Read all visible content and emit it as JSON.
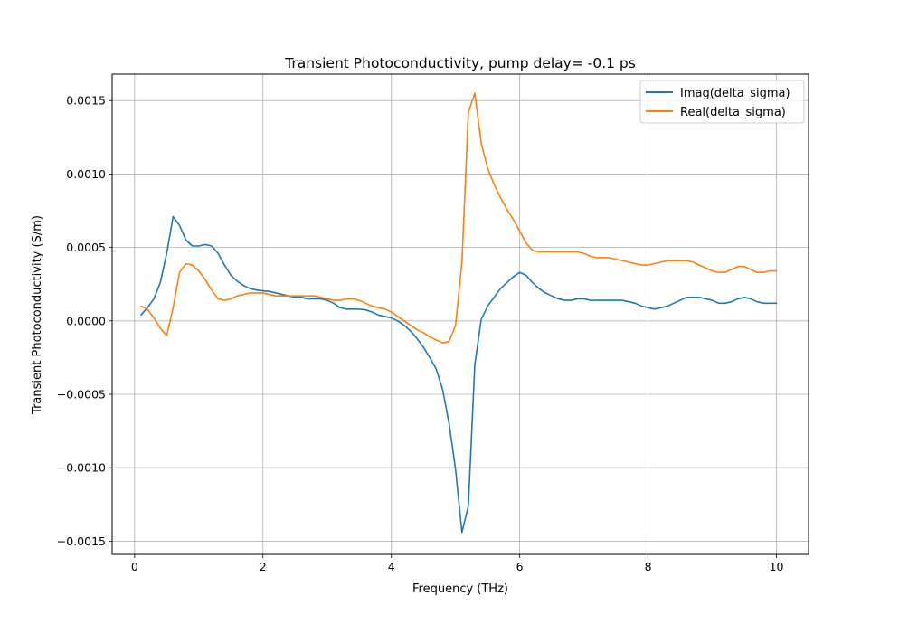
{
  "chart_data": {
    "type": "line",
    "title": "Transient Photoconductivity, pump delay= -0.1 ps",
    "xlabel": "Frequency (THz)",
    "ylabel": "Transient Photoconductivity (S/m)",
    "xlim": [
      -0.35,
      10.5
    ],
    "ylim": [
      -0.00159,
      0.00168
    ],
    "xticks": [
      0,
      2,
      4,
      6,
      8,
      10
    ],
    "xtick_labels": [
      "0",
      "2",
      "4",
      "6",
      "8",
      "10"
    ],
    "yticks": [
      -0.0015,
      -0.001,
      -0.0005,
      0.0,
      0.0005,
      0.001,
      0.0015
    ],
    "ytick_labels": [
      "−0.0015",
      "−0.0010",
      "−0.0005",
      "0.0000",
      "0.0005",
      "0.0010",
      "0.0015"
    ],
    "grid": true,
    "legend_position": "top-right",
    "x": [
      0.1,
      0.2,
      0.3,
      0.4,
      0.5,
      0.6,
      0.7,
      0.8,
      0.9,
      1.0,
      1.1,
      1.2,
      1.3,
      1.4,
      1.5,
      1.6,
      1.7,
      1.8,
      1.9,
      2.0,
      2.1,
      2.2,
      2.3,
      2.4,
      2.5,
      2.6,
      2.7,
      2.8,
      2.9,
      3.0,
      3.1,
      3.2,
      3.3,
      3.4,
      3.5,
      3.6,
      3.7,
      3.8,
      3.9,
      4.0,
      4.1,
      4.2,
      4.3,
      4.4,
      4.5,
      4.6,
      4.7,
      4.8,
      4.9,
      5.0,
      5.1,
      5.2,
      5.3,
      5.4,
      5.5,
      5.6,
      5.7,
      5.8,
      5.9,
      6.0,
      6.1,
      6.2,
      6.3,
      6.4,
      6.5,
      6.6,
      6.7,
      6.8,
      6.9,
      7.0,
      7.1,
      7.2,
      7.3,
      7.4,
      7.5,
      7.6,
      7.7,
      7.8,
      7.9,
      8.0,
      8.1,
      8.2,
      8.3,
      8.4,
      8.5,
      8.6,
      8.7,
      8.8,
      8.9,
      9.0,
      9.1,
      9.2,
      9.3,
      9.4,
      9.5,
      9.6,
      9.7,
      9.8,
      9.9,
      10.0
    ],
    "series": [
      {
        "name": "Imag(delta_sigma)",
        "color": "#1f77b4",
        "values": [
          4e-05,
          9e-05,
          0.00015,
          0.00026,
          0.00046,
          0.00071,
          0.00065,
          0.00055,
          0.00051,
          0.00051,
          0.00052,
          0.00051,
          0.00046,
          0.00038,
          0.00031,
          0.00027,
          0.00024,
          0.00022,
          0.00021,
          0.000205,
          0.0002,
          0.00019,
          0.00018,
          0.00017,
          0.00016,
          0.00016,
          0.00015,
          0.00015,
          0.00015,
          0.00014,
          0.00012,
          9e-05,
          8e-05,
          8e-05,
          8e-05,
          7.5e-05,
          6e-05,
          4e-05,
          3e-05,
          2e-05,
          0.0,
          -3e-05,
          -7e-05,
          -0.00012,
          -0.00018,
          -0.00025,
          -0.00033,
          -0.00047,
          -0.0007,
          -0.00101,
          -0.00144,
          -0.00126,
          -0.0003,
          1e-05,
          0.0001,
          0.00016,
          0.00022,
          0.00026,
          0.0003,
          0.00033,
          0.00031,
          0.00026,
          0.00022,
          0.00019,
          0.00017,
          0.00015,
          0.00014,
          0.00014,
          0.00015,
          0.00015,
          0.00014,
          0.00014,
          0.00014,
          0.00014,
          0.00014,
          0.00014,
          0.00013,
          0.00012,
          0.0001,
          9e-05,
          8e-05,
          9e-05,
          0.0001,
          0.00012,
          0.00014,
          0.00016,
          0.00016,
          0.00016,
          0.00015,
          0.00014,
          0.00012,
          0.00012,
          0.00013,
          0.00015,
          0.00016,
          0.00015,
          0.00013,
          0.00012,
          0.00012,
          0.00012
        ]
      },
      {
        "name": "Real(delta_sigma)",
        "color": "#ff7f0e",
        "values": [
          0.0001,
          8e-05,
          2e-05,
          -5e-05,
          -0.0001,
          9e-05,
          0.00033,
          0.00039,
          0.00038,
          0.00034,
          0.00028,
          0.00021,
          0.00015,
          0.00014,
          0.00015,
          0.00017,
          0.00018,
          0.00019,
          0.00019,
          0.00019,
          0.00018,
          0.00017,
          0.00017,
          0.00017,
          0.00017,
          0.00017,
          0.00017,
          0.00017,
          0.00016,
          0.00015,
          0.00014,
          0.00014,
          0.00015,
          0.00015,
          0.00014,
          0.00012,
          0.0001,
          9e-05,
          8e-05,
          6e-05,
          3e-05,
          0.0,
          -3e-05,
          -6e-05,
          -8e-05,
          -0.00011,
          -0.00013,
          -0.00015,
          -0.00014,
          -3e-05,
          0.0004,
          0.00142,
          0.00155,
          0.00121,
          0.00104,
          0.00093,
          0.00084,
          0.00076,
          0.00069,
          0.00061,
          0.00053,
          0.00048,
          0.00047,
          0.00047,
          0.00047,
          0.00047,
          0.00047,
          0.00047,
          0.00047,
          0.00046,
          0.00044,
          0.00043,
          0.00043,
          0.00043,
          0.00042,
          0.00041,
          0.0004,
          0.00039,
          0.00038,
          0.00038,
          0.00039,
          0.0004,
          0.00041,
          0.00041,
          0.00041,
          0.00041,
          0.0004,
          0.00038,
          0.00036,
          0.00034,
          0.00033,
          0.00033,
          0.00035,
          0.00037,
          0.00037,
          0.00035,
          0.00033,
          0.00033,
          0.00034,
          0.00034
        ]
      }
    ]
  }
}
